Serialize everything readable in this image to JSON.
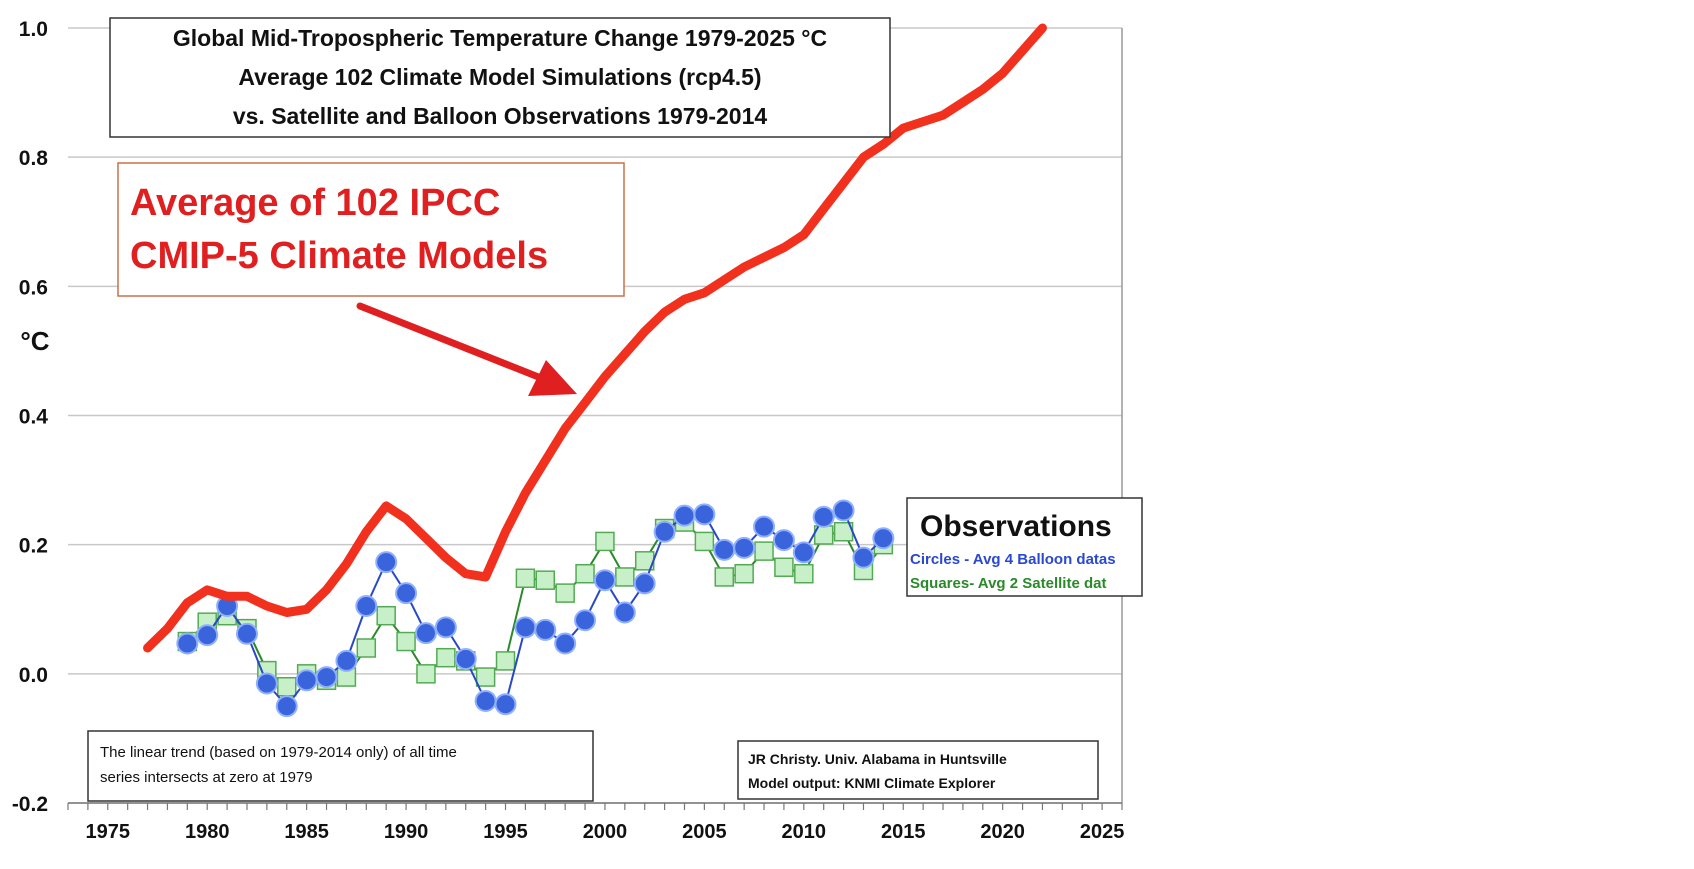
{
  "chart_data": {
    "type": "line",
    "title": [
      "Global Mid-Tropospheric Temperature Change 1979-2025 °C",
      "Average 102 Climate Model Simulations (rcp4.5)",
      "vs. Satellite and Balloon Observations 1979-2014"
    ],
    "ylabel": "°C",
    "xlabel": "",
    "xlim": [
      1973,
      2026
    ],
    "ylim": [
      -0.2,
      1.0
    ],
    "x_ticks": [
      "1975",
      "1980",
      "1985",
      "1990",
      "1995",
      "2000",
      "2005",
      "2010",
      "2015",
      "2020",
      "2025"
    ],
    "y_ticks": [
      "-0.2",
      "0.0",
      "0.2",
      "0.4",
      "0.6",
      "0.8",
      "1.0"
    ],
    "grid": "horizontal",
    "model_callout": [
      "Average of 102 IPCC",
      "CMIP-5 Climate Models"
    ],
    "legend": {
      "title": "Observations",
      "entries": [
        "Circles - Avg 4 Balloon datas",
        "Squares- Avg 2 Satellite dat"
      ]
    },
    "note": [
      "The linear trend (based on 1979-2014 only) of all time",
      "series intersects at zero at 1979"
    ],
    "credit": [
      "JR Christy. Univ. Alabama in Huntsville",
      "Model output: KNMI Climate Explorer"
    ],
    "colors": {
      "model": "#f2301e",
      "balloon": "#3a64dc",
      "balloon_line": "#2848c8",
      "satellite_fill": "#c8f0c8",
      "satellite_edge": "#54aa54",
      "satellite_line": "#2a8a2a",
      "grid": "#c8c8c8",
      "callout_text": "#e02020"
    },
    "series": [
      {
        "key": "model",
        "x": [
          1977,
          1978,
          1979,
          1980,
          1981,
          1982,
          1983,
          1984,
          1985,
          1986,
          1987,
          1988,
          1989,
          1990,
          1991,
          1992,
          1993,
          1994,
          1995,
          1996,
          1997,
          1998,
          1999,
          2000,
          2001,
          2002,
          2003,
          2004,
          2005,
          2006,
          2007,
          2008,
          2009,
          2010,
          2011,
          2012,
          2013,
          2014,
          2015,
          2016,
          2017,
          2018,
          2019,
          2020,
          2021,
          2022
        ],
        "values": [
          0.04,
          0.07,
          0.11,
          0.13,
          0.12,
          0.12,
          0.105,
          0.095,
          0.1,
          0.13,
          0.17,
          0.22,
          0.26,
          0.24,
          0.21,
          0.18,
          0.155,
          0.15,
          0.22,
          0.28,
          0.33,
          0.38,
          0.42,
          0.46,
          0.495,
          0.53,
          0.56,
          0.58,
          0.59,
          0.61,
          0.63,
          0.645,
          0.66,
          0.68,
          0.72,
          0.76,
          0.8,
          0.82,
          0.845,
          0.855,
          0.865,
          0.885,
          0.905,
          0.93,
          0.965,
          1.0
        ]
      },
      {
        "key": "balloon",
        "name": "Circles - Avg 4 Balloon datas",
        "x": [
          1979,
          1980,
          1981,
          1982,
          1983,
          1984,
          1985,
          1986,
          1987,
          1988,
          1989,
          1990,
          1991,
          1992,
          1993,
          1994,
          1995,
          1996,
          1997,
          1998,
          1999,
          2000,
          2001,
          2002,
          2003,
          2004,
          2005,
          2006,
          2007,
          2008,
          2009,
          2010,
          2011,
          2012,
          2013,
          2014
        ],
        "values": [
          0.047,
          0.06,
          0.105,
          0.062,
          -0.015,
          -0.05,
          -0.01,
          -0.005,
          0.02,
          0.105,
          0.173,
          0.125,
          0.063,
          0.072,
          0.023,
          -0.042,
          -0.047,
          0.072,
          0.068,
          0.047,
          0.083,
          0.145,
          0.095,
          0.14,
          0.22,
          0.245,
          0.247,
          0.192,
          0.195,
          0.228,
          0.207,
          0.188,
          0.243,
          0.253,
          0.18,
          0.21
        ]
      },
      {
        "key": "satellite",
        "name": "Squares- Avg 2 Satellite dat",
        "x": [
          1979,
          1980,
          1981,
          1982,
          1983,
          1984,
          1985,
          1986,
          1987,
          1988,
          1989,
          1990,
          1991,
          1992,
          1993,
          1994,
          1995,
          1996,
          1997,
          1998,
          1999,
          2000,
          2001,
          2002,
          2003,
          2004,
          2005,
          2006,
          2007,
          2008,
          2009,
          2010,
          2011,
          2012,
          2013,
          2014
        ],
        "values": [
          0.05,
          0.08,
          0.09,
          0.07,
          0.005,
          -0.02,
          0.0,
          -0.01,
          -0.005,
          0.04,
          0.09,
          0.05,
          0.0,
          0.025,
          0.02,
          -0.005,
          0.02,
          0.148,
          0.145,
          0.125,
          0.155,
          0.205,
          0.15,
          0.175,
          0.225,
          0.235,
          0.205,
          0.15,
          0.155,
          0.19,
          0.165,
          0.155,
          0.215,
          0.22,
          0.16,
          0.2
        ]
      }
    ]
  }
}
